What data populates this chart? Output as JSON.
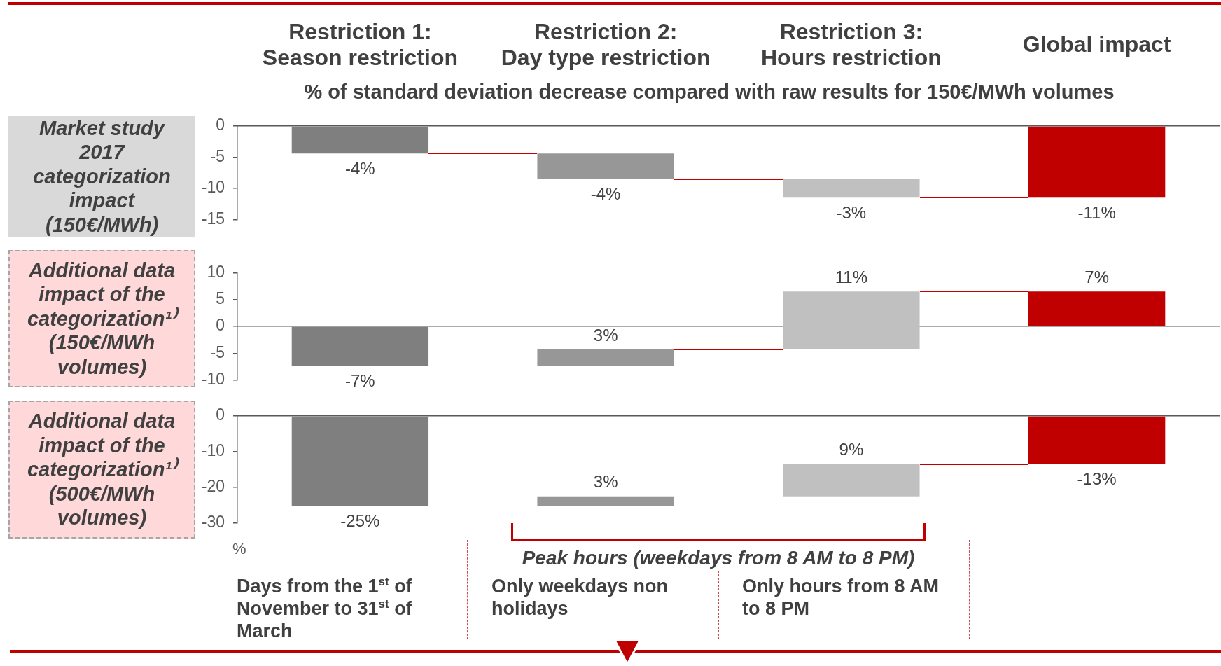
{
  "chart_data": [
    {
      "type": "bar",
      "title": "Market study\n2017\ncategorization\nimpact\n(150€/MWh)",
      "subtitle": "% of standard deviation decrease compared with raw results for 150€/MWh volumes",
      "categories": [
        "Restriction 1:\nSeason restriction",
        "Restriction 2:\nDay type restriction",
        "Restriction 3:\nHours restriction",
        "Global impact"
      ],
      "values": [
        -4.4,
        -4.1,
        -3,
        -11.5
      ],
      "base": [
        0,
        -4.4,
        -8.5,
        0
      ],
      "colors": [
        "#7f7f7f",
        "#979797",
        "#c0c0c0",
        "#c00000"
      ],
      "value_labels": [
        "-4%",
        "-4%",
        "-3%",
        "-11%"
      ],
      "ylim": [
        -15,
        0
      ],
      "yticks": [
        -15,
        -10,
        -5,
        0
      ]
    },
    {
      "type": "bar",
      "title": "Additional data\nimpact of the\ncategorization¹⁾\n(150€/MWh\nvolumes)",
      "categories": [
        null,
        null,
        null,
        null
      ],
      "values": [
        -7.3,
        3,
        10.8,
        6.5
      ],
      "base": [
        0,
        -7.3,
        -4.3,
        0
      ],
      "colors": [
        "#7f7f7f",
        "#979797",
        "#c0c0c0",
        "#c00000"
      ],
      "value_labels": [
        "-7%",
        "3%",
        "11%",
        "7%"
      ],
      "ylim": [
        -10,
        10
      ],
      "yticks": [
        -10,
        -5,
        0,
        5,
        10
      ],
      "tick_labels": "y"
    },
    {
      "type": "bar",
      "title": "Additional data\nimpact of the\ncategorization¹⁾\n(500€/MWh\nvolumes)",
      "categories": [
        null,
        null,
        null,
        null
      ],
      "values": [
        -25.2,
        2.7,
        9,
        -13.5
      ],
      "base": [
        0,
        -25.2,
        -22.5,
        0
      ],
      "colors": [
        "#7f7f7f",
        "#979797",
        "#c0c0c0",
        "#c00000"
      ],
      "value_labels": [
        "-25%",
        "3%",
        "9%",
        "-13%"
      ],
      "ylim": [
        -30,
        0
      ],
      "yticks": [
        -30,
        -20,
        -10,
        0
      ],
      "tick_labels": "y",
      "annotations": [
        "%",
        "Peak hours (weekdays from 8 AM to 8 PM)",
        "Days from the 1$^{st}$ of November to 31$^{st}$ of March",
        "Only weekdays non holidays",
        "Only hours from 8 AM to 8 PM"
      ]
    }
  ]
}
